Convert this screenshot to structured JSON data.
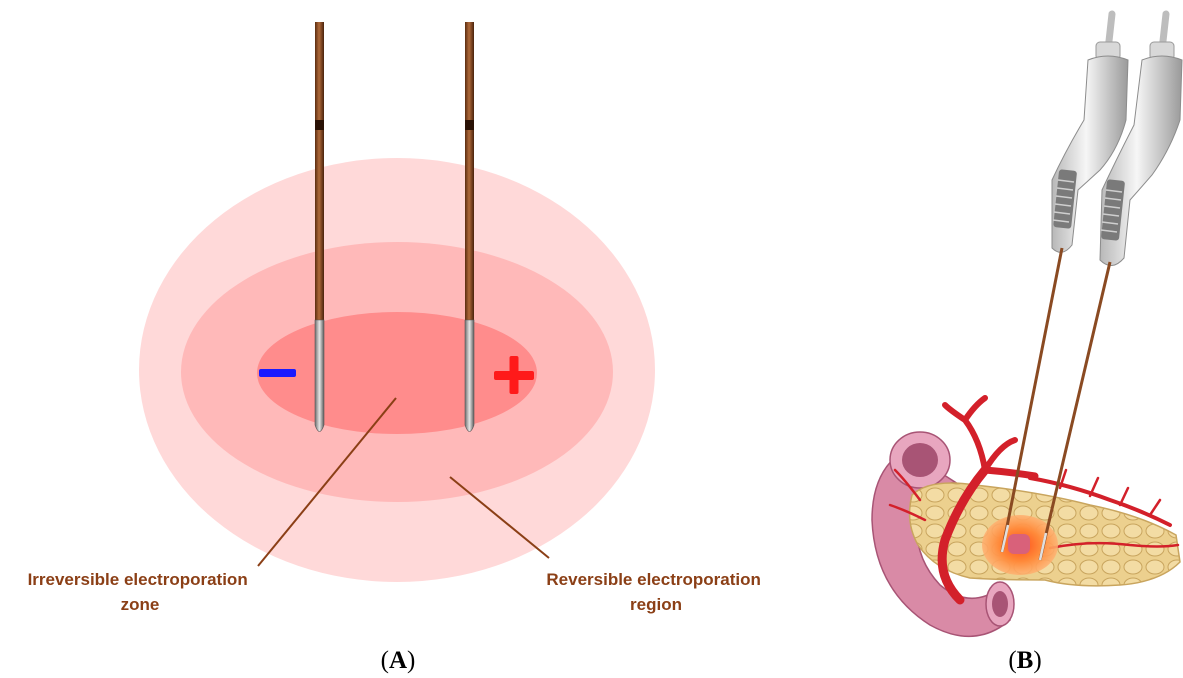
{
  "panel_a": {
    "letter": "A",
    "zones": {
      "irreversible_label_line1": "Irreversible electroporation",
      "irreversible_label_line2": "zone",
      "reversible_label_line1": "Reversible electroporation",
      "reversible_label_line2": "region"
    },
    "electrodes": {
      "negative_symbol": "−",
      "positive_symbol": "+"
    },
    "colors": {
      "outer_zone": "#ffd6d6",
      "middle_zone": "#ffb8b8",
      "inner_zone": "#ff8a8a",
      "label": "#8b3f16",
      "negative": "#1a1aff",
      "positive": "#ff1a1a",
      "needle": "#8a4a22"
    }
  },
  "panel_b": {
    "letter": "B",
    "colors": {
      "pancreas": "#e8c987",
      "duodenum": "#d98aa6",
      "vessel": "#d3202a",
      "ablation": "#ff7a2a",
      "handle": "#e8e8e8"
    }
  }
}
